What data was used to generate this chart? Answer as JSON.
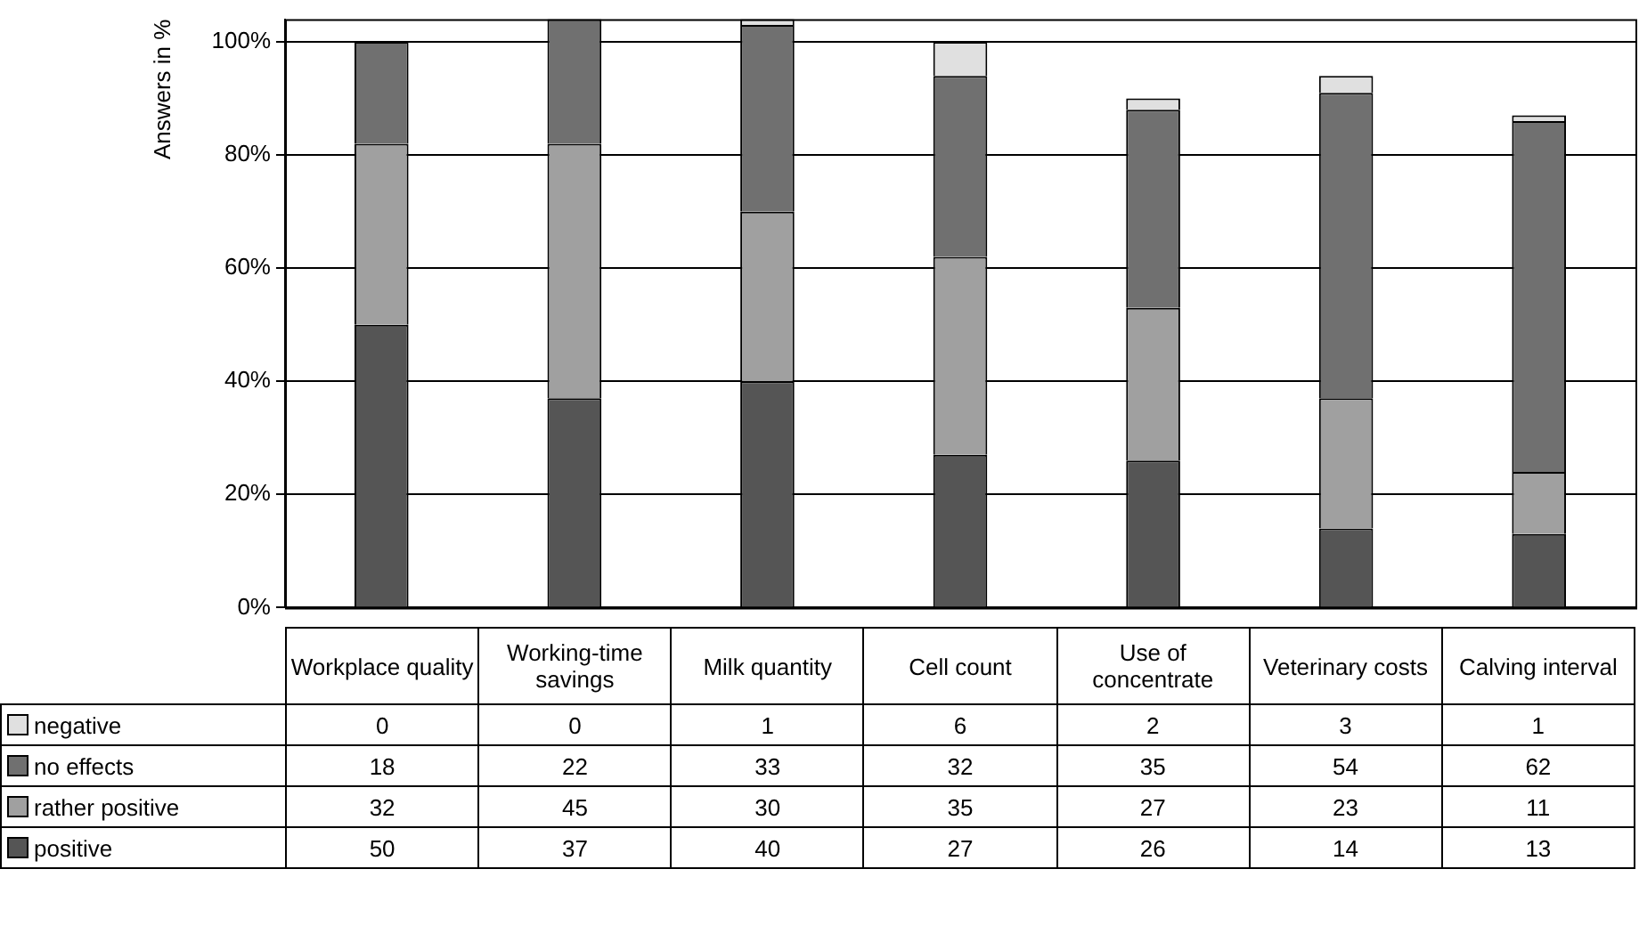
{
  "chart_data": {
    "type": "bar",
    "stacked": true,
    "ylabel": "Answers in %",
    "categories": [
      "Workplace quality",
      "Working-time savings",
      "Milk quantity",
      "Cell count",
      "Use of concentrate",
      "Veterinary costs",
      "Calving interval"
    ],
    "series": [
      {
        "name": "positive",
        "color": "#555555",
        "values": [
          50,
          37,
          40,
          27,
          26,
          14,
          13
        ]
      },
      {
        "name": "rather positive",
        "color": "#a0a0a0",
        "values": [
          32,
          45,
          30,
          35,
          27,
          23,
          11
        ]
      },
      {
        "name": "no effects",
        "color": "#707070",
        "values": [
          18,
          22,
          33,
          32,
          35,
          54,
          62
        ]
      },
      {
        "name": "negative",
        "color": "#e0e0e0",
        "values": [
          0,
          0,
          1,
          6,
          2,
          3,
          1
        ]
      }
    ],
    "ylim": [
      0,
      104
    ],
    "yticks": [
      {
        "value": 0,
        "label": "0%"
      },
      {
        "value": 20,
        "label": "20%"
      },
      {
        "value": 40,
        "label": "40%"
      },
      {
        "value": 60,
        "label": "60%"
      },
      {
        "value": 80,
        "label": "80%"
      },
      {
        "value": 100,
        "label": "100%"
      }
    ],
    "grid": "y",
    "data_labels": true,
    "legend": "bottom left"
  }
}
